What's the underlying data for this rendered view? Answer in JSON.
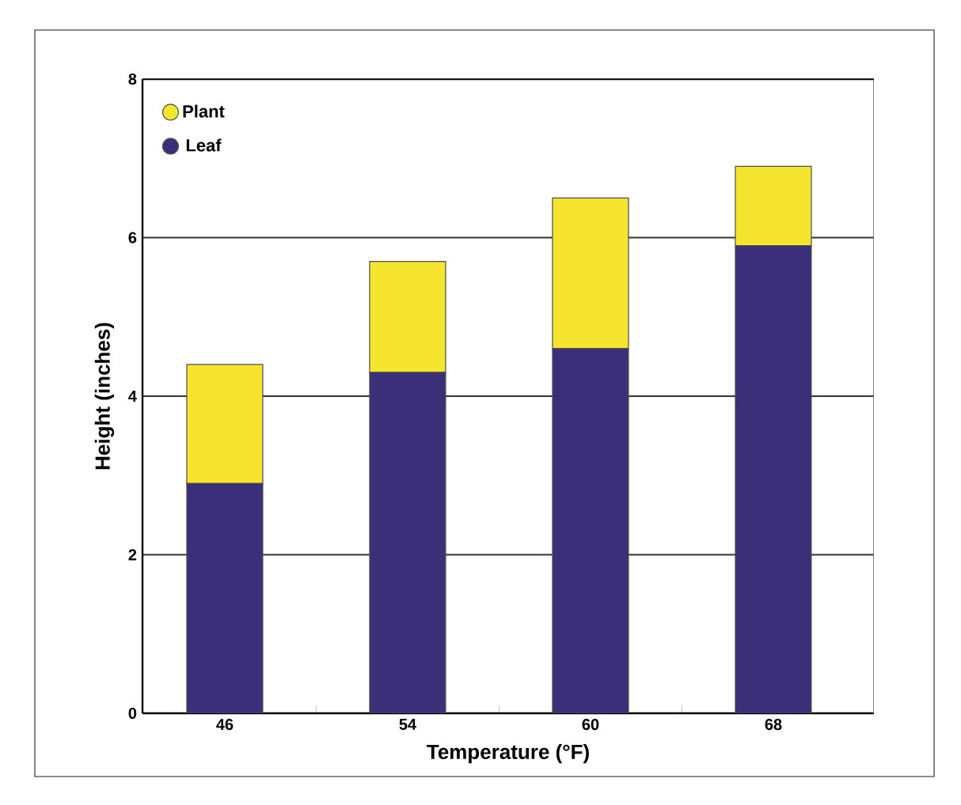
{
  "chart_data": {
    "type": "bar",
    "stacked": true,
    "xlabel": "Temperature (°F)",
    "ylabel": "Height (inches)",
    "categories": [
      "46",
      "54",
      "60",
      "68"
    ],
    "series": [
      {
        "name": "Leaf",
        "color": "#3b2f7a",
        "values": [
          2.9,
          4.3,
          4.6,
          5.9
        ]
      },
      {
        "name": "Plant",
        "color": "#f5e52f",
        "values": [
          1.5,
          1.4,
          1.9,
          1.0
        ]
      }
    ],
    "ylim": [
      0,
      8
    ],
    "yticks": [
      0,
      2,
      4,
      6,
      8
    ],
    "grid": "y",
    "legend": "top left"
  }
}
